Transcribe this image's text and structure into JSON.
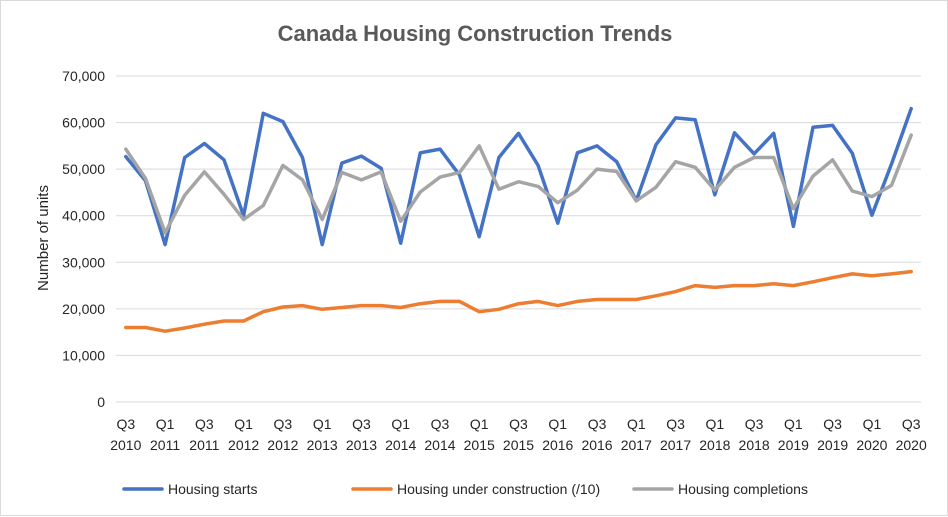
{
  "chart_data": {
    "type": "line",
    "title": "Canada Housing Construction Trends",
    "ylabel": "Number of units",
    "xlabel": "",
    "ylim": [
      0,
      70000
    ],
    "yticks": [
      0,
      10000,
      20000,
      30000,
      40000,
      50000,
      60000,
      70000
    ],
    "ytick_labels": [
      "0",
      "10,000",
      "20,000",
      "30,000",
      "40,000",
      "50,000",
      "60,000",
      "70,000"
    ],
    "grid": true,
    "legend_position": "bottom",
    "x": [
      "Q3 2010",
      "Q4 2010",
      "Q1 2011",
      "Q2 2011",
      "Q3 2011",
      "Q4 2011",
      "Q1 2012",
      "Q2 2012",
      "Q3 2012",
      "Q4 2012",
      "Q1 2013",
      "Q2 2013",
      "Q3 2013",
      "Q4 2013",
      "Q1 2014",
      "Q2 2014",
      "Q3 2014",
      "Q4 2014",
      "Q1 2015",
      "Q2 2015",
      "Q3 2015",
      "Q4 2015",
      "Q1 2016",
      "Q2 2016",
      "Q3 2016",
      "Q4 2016",
      "Q1 2017",
      "Q2 2017",
      "Q3 2017",
      "Q4 2017",
      "Q1 2018",
      "Q2 2018",
      "Q3 2018",
      "Q4 2018",
      "Q1 2019",
      "Q2 2019",
      "Q3 2019",
      "Q4 2019",
      "Q1 2020",
      "Q2 2020",
      "Q3 2020"
    ],
    "x_tick_labels": [
      {
        "q": "Q3",
        "y": "2010"
      },
      {
        "q": "Q1",
        "y": "2011"
      },
      {
        "q": "Q3",
        "y": "2011"
      },
      {
        "q": "Q1",
        "y": "2012"
      },
      {
        "q": "Q3",
        "y": "2012"
      },
      {
        "q": "Q1",
        "y": "2013"
      },
      {
        "q": "Q3",
        "y": "2013"
      },
      {
        "q": "Q1",
        "y": "2014"
      },
      {
        "q": "Q3",
        "y": "2014"
      },
      {
        "q": "Q1",
        "y": "2015"
      },
      {
        "q": "Q3",
        "y": "2015"
      },
      {
        "q": "Q1",
        "y": "2016"
      },
      {
        "q": "Q3",
        "y": "2016"
      },
      {
        "q": "Q1",
        "y": "2017"
      },
      {
        "q": "Q3",
        "y": "2017"
      },
      {
        "q": "Q1",
        "y": "2018"
      },
      {
        "q": "Q3",
        "y": "2018"
      },
      {
        "q": "Q1",
        "y": "2019"
      },
      {
        "q": "Q3",
        "y": "2019"
      },
      {
        "q": "Q1",
        "y": "2020"
      },
      {
        "q": "Q3",
        "y": "2020"
      }
    ],
    "series": [
      {
        "name": "Housing starts",
        "color": "#4472c4",
        "values": [
          52700,
          47500,
          33800,
          52500,
          55500,
          52000,
          40000,
          62000,
          60200,
          52500,
          33800,
          51300,
          52800,
          50200,
          34100,
          53500,
          54300,
          48700,
          35500,
          52500,
          57700,
          50800,
          38400,
          53500,
          55000,
          51600,
          43200,
          55200,
          61000,
          60600,
          44500,
          57800,
          53300,
          57700,
          37700,
          59000,
          59400,
          53400,
          40100,
          51100,
          63000
        ]
      },
      {
        "name": "Housing under construction (/10)",
        "color": "#ed7d31",
        "values": [
          16000,
          16000,
          15200,
          15900,
          16700,
          17400,
          17400,
          19400,
          20400,
          20700,
          19900,
          20300,
          20700,
          20700,
          20300,
          21100,
          21600,
          21600,
          19400,
          19900,
          21100,
          21600,
          20700,
          21600,
          22000,
          22000,
          22000,
          22800,
          23700,
          25000,
          24600,
          25000,
          25000,
          25400,
          25000,
          25800,
          26700,
          27500,
          27100,
          27500,
          28000
        ]
      },
      {
        "name": "Housing completions",
        "color": "#a5a5a5",
        "values": [
          54300,
          48000,
          36300,
          44400,
          49400,
          44600,
          39200,
          42200,
          50800,
          47700,
          39200,
          49300,
          47700,
          49400,
          38800,
          45100,
          48300,
          49300,
          55000,
          45700,
          47300,
          46300,
          42800,
          45500,
          50000,
          49500,
          43200,
          46100,
          51600,
          50400,
          45500,
          50400,
          52500,
          52500,
          41500,
          48500,
          52000,
          45300,
          44100,
          46500,
          57300
        ]
      }
    ]
  }
}
